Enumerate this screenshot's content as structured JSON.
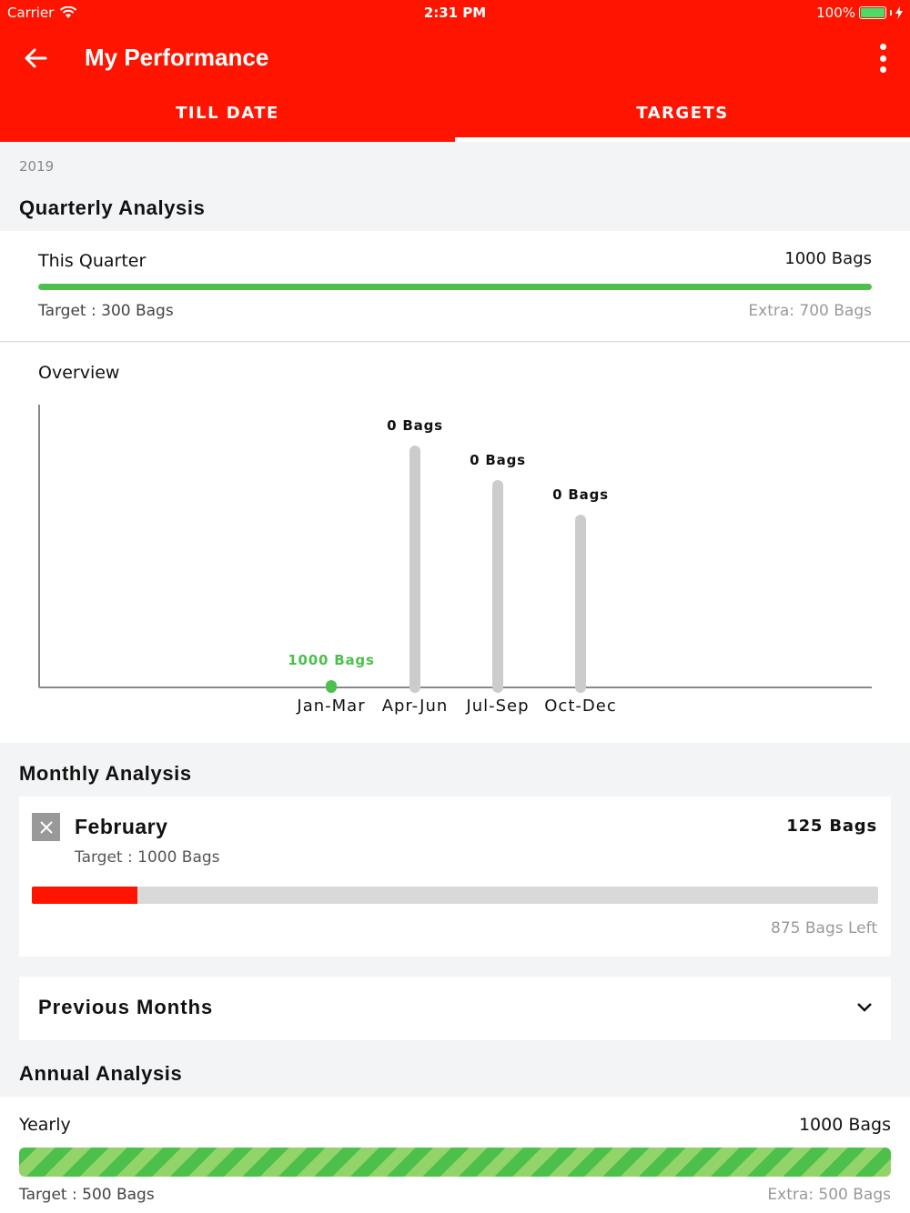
{
  "status": {
    "carrier": "Carrier",
    "time": "2:31 PM",
    "battery": "100%"
  },
  "appbar": {
    "title": "My Performance"
  },
  "tabs": [
    {
      "label": "TILL DATE"
    },
    {
      "label": "TARGETS"
    }
  ],
  "year": "2019",
  "quarterly": {
    "title": "Quarterly Analysis",
    "this_quarter_label": "This Quarter",
    "this_quarter_value": "1000 Bags",
    "progress_fraction": 1.0,
    "target": "Target : 300 Bags",
    "extra": "Extra: 700 Bags"
  },
  "overview": {
    "title": "Overview"
  },
  "chart_data": {
    "type": "bar",
    "categories": [
      "Jan-Mar",
      "Apr-Jun",
      "Jul-Sep",
      "Oct-Dec"
    ],
    "data_labels": [
      "1000 Bags",
      "0 Bags",
      "0 Bags",
      "0 Bags"
    ],
    "values": [
      1000,
      0,
      0,
      0
    ],
    "colors": [
      "#4cc04a",
      "#cccccc",
      "#cccccc",
      "#cccccc"
    ]
  },
  "monthly": {
    "title": "Monthly Analysis",
    "month": "February",
    "value": "125 Bags",
    "target": "Target : 1000 Bags",
    "progress_fraction": 0.125,
    "left": "875 Bags Left",
    "previous_label": "Previous Months"
  },
  "annual": {
    "title": "Annual Analysis",
    "label": "Yearly",
    "value": "1000 Bags",
    "progress_fraction": 1.0,
    "target": "Target : 500 Bags",
    "extra": "Extra: 500 Bags"
  },
  "colors": {
    "brand": "#ff1400",
    "success": "#4cc04a",
    "danger": "#ff1400",
    "track": "#d9d9d9"
  }
}
